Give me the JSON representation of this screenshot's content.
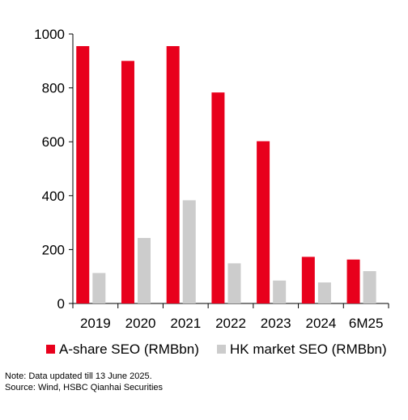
{
  "chart_data": {
    "type": "bar",
    "categories": [
      "2019",
      "2020",
      "2021",
      "2022",
      "2023",
      "2024",
      "6M25"
    ],
    "series": [
      {
        "name": "A-share SEO (RMBbn)",
        "values": [
          955,
          900,
          955,
          783,
          602,
          173,
          163
        ],
        "color": "#e8001c"
      },
      {
        "name": "HK market SEO (RMBbn)",
        "values": [
          113,
          243,
          383,
          149,
          85,
          78,
          120
        ],
        "color": "#cccccc"
      }
    ],
    "ylim": [
      0,
      1000
    ],
    "yticks": [
      "0",
      "200",
      "400",
      "600",
      "800",
      "1000"
    ],
    "grid": false,
    "legend_position": "bottom",
    "xlabel": "",
    "ylabel": ""
  },
  "notes": {
    "note": "Note: Data updated till 13 June 2025.",
    "source": "Source: Wind, HSBC Qianhai Securities"
  }
}
